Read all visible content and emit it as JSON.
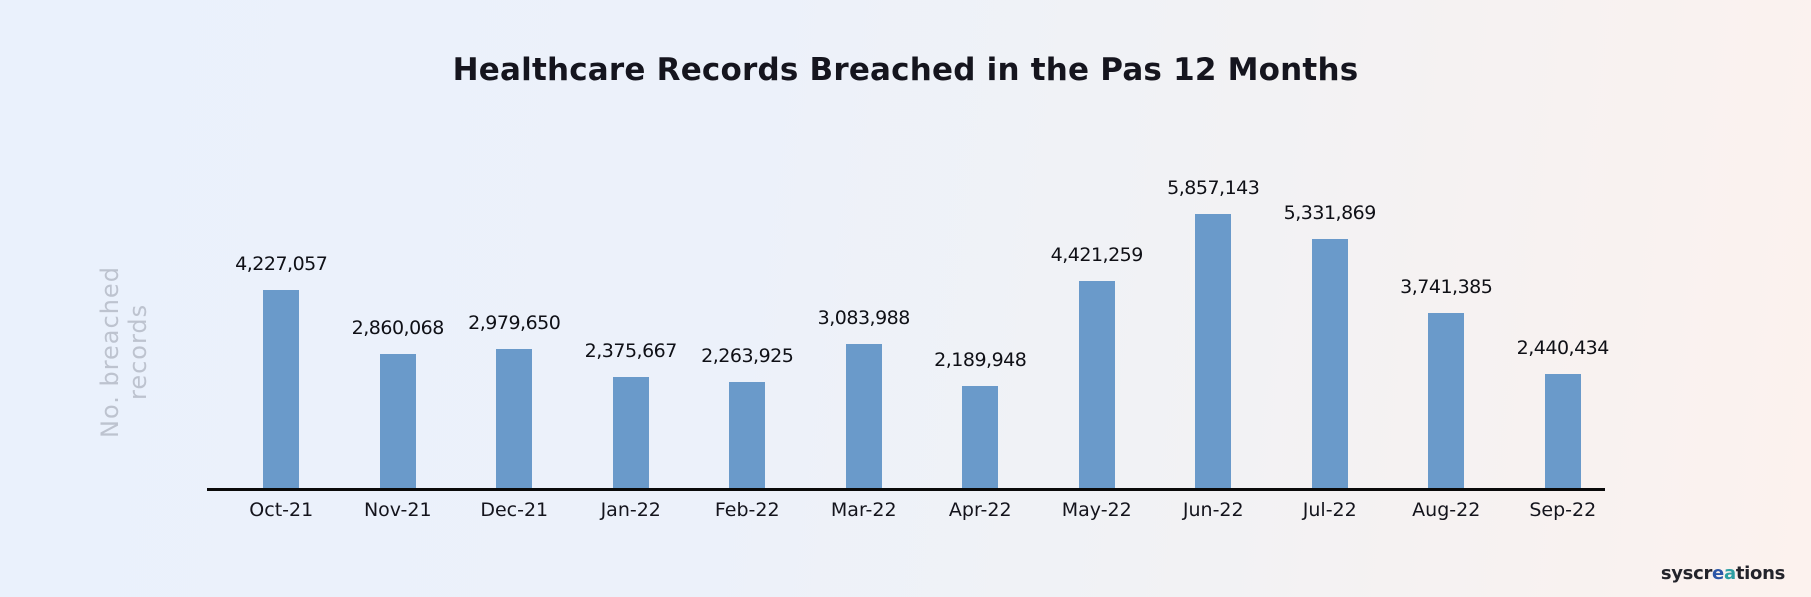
{
  "page": {
    "title": "Healthcare Records Breached in the Pas 12 Months",
    "y_axis_label": "No. breached records"
  },
  "chart_data": {
    "type": "bar",
    "title": "Healthcare Records Breached in the Pas 12 Months",
    "xlabel": "",
    "ylabel": "No. breached records",
    "categories": [
      "Oct-21",
      "Nov-21",
      "Dec-21",
      "Jan-22",
      "Feb-22",
      "Mar-22",
      "Apr-22",
      "May-22",
      "Jun-22",
      "Jul-22",
      "Aug-22",
      "Sep-22"
    ],
    "values": [
      4227057,
      2860068,
      2979650,
      2375667,
      2263925,
      3083988,
      2189948,
      4421259,
      5857143,
      5331869,
      3741385,
      2440434
    ],
    "value_labels": [
      "4,227,057",
      "2,860,068",
      "2,979,650",
      "2,375,667",
      "2,263,925",
      "3,083,988",
      "2,189,948",
      "4,421,259",
      "5,857,143",
      "5,331,869",
      "3,741,385",
      "2,440,434"
    ],
    "ylim": [
      0,
      5857143
    ],
    "grid": false,
    "legend": false,
    "bar_color": "#6a9aca",
    "axis_color": "#0a0a0a"
  },
  "branding": {
    "logo_part1": "syscr",
    "logo_part_e": "e",
    "logo_part_a": "a",
    "logo_part2": "tions",
    "logo_e_color": "#2c57a7",
    "logo_a_color": "#2d9fa3"
  },
  "colors": {
    "background_left": "#eaf1fc",
    "background_right": "#fcf2ee",
    "title_text": "#15151e",
    "y_label_text": "#bdc3cf",
    "value_label_text": "#0f1016"
  }
}
